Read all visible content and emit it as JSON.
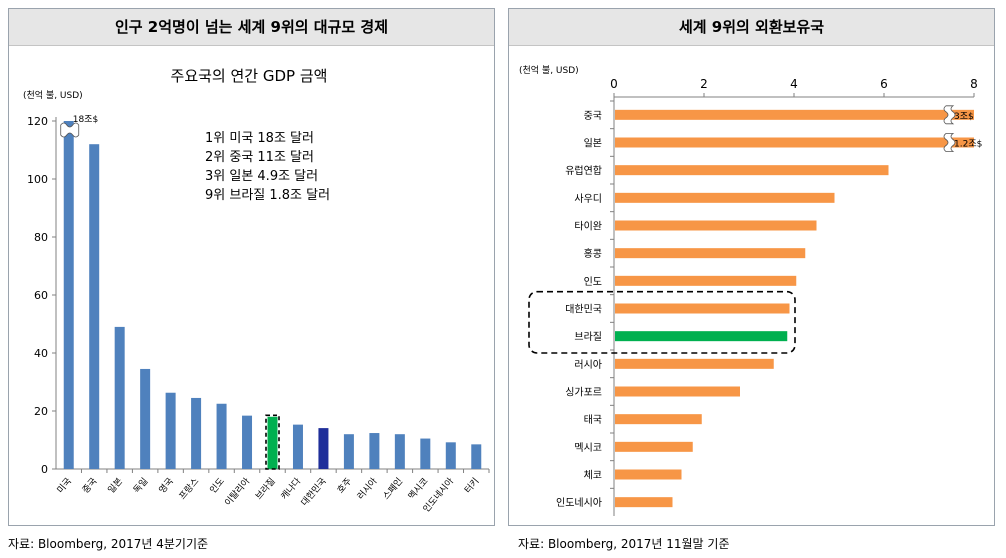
{
  "left_panel": {
    "title": "인구 2억명이 넘는 세계 9위의 대규모 경제",
    "source": "자료: Bloomberg, 2017년 4분기기준"
  },
  "right_panel": {
    "title": "세계 9위의 외환보유국",
    "source": "자료: Bloomberg, 2017년 11월말 기준"
  },
  "colors": {
    "bar_blue": "#4f81bd",
    "bar_dark_blue": "#1f2f9a",
    "bar_green": "#00b050",
    "bar_orange": "#f79646",
    "axis_gray": "#808080"
  },
  "chart_data": [
    {
      "type": "bar",
      "title": "주요국의 연간 GDP 금액",
      "ylabel": "(천억 불, USD)",
      "ylim": [
        0,
        120
      ],
      "yticks": [
        0,
        20,
        40,
        60,
        80,
        100,
        120
      ],
      "categories": [
        "미국",
        "중국",
        "일본",
        "독일",
        "영국",
        "프랑스",
        "인도",
        "이탈리아",
        "브라질",
        "캐나다",
        "대한민국",
        "호주",
        "러시아",
        "스페인",
        "멕시코",
        "인도네시아",
        "터키"
      ],
      "values": [
        120,
        112,
        49,
        34.5,
        26.3,
        24.5,
        22.5,
        18.4,
        18,
        15.3,
        14.1,
        12,
        12.4,
        12,
        10.5,
        9.2,
        8.5
      ],
      "highlight": {
        "브라질": "#00b050",
        "대한민국": "#1f2f9a"
      },
      "dashed_box_category": "브라질",
      "break_label": "18조$",
      "annotations": [
        "1위 미국 18조 달러",
        "2위 중국 11조 달러",
        "3위 일본 4.9조 달러",
        "9위 브라질 1.8조 달러"
      ]
    },
    {
      "type": "bar",
      "orientation": "horizontal",
      "ylabel": "(천억 불, USD)",
      "xlim": [
        0,
        8
      ],
      "xticks": [
        0,
        2,
        4,
        6,
        8
      ],
      "categories": [
        "중국",
        "일본",
        "유럽연합",
        "사우디",
        "타이완",
        "홍콩",
        "인도",
        "대한민국",
        "브라질",
        "러시아",
        "싱가포르",
        "태국",
        "멕시코",
        "체코",
        "인도네시아"
      ],
      "values": [
        8,
        8,
        6.1,
        4.9,
        4.5,
        4.25,
        4.05,
        3.9,
        3.85,
        3.55,
        2.8,
        1.95,
        1.75,
        1.5,
        1.3
      ],
      "highlight": {
        "브라질": "#00b050"
      },
      "dashed_box_categories": [
        "대한민국",
        "브라질"
      ],
      "break_labels": {
        "중국": "3조$",
        "일본": "1.2조$"
      }
    }
  ]
}
